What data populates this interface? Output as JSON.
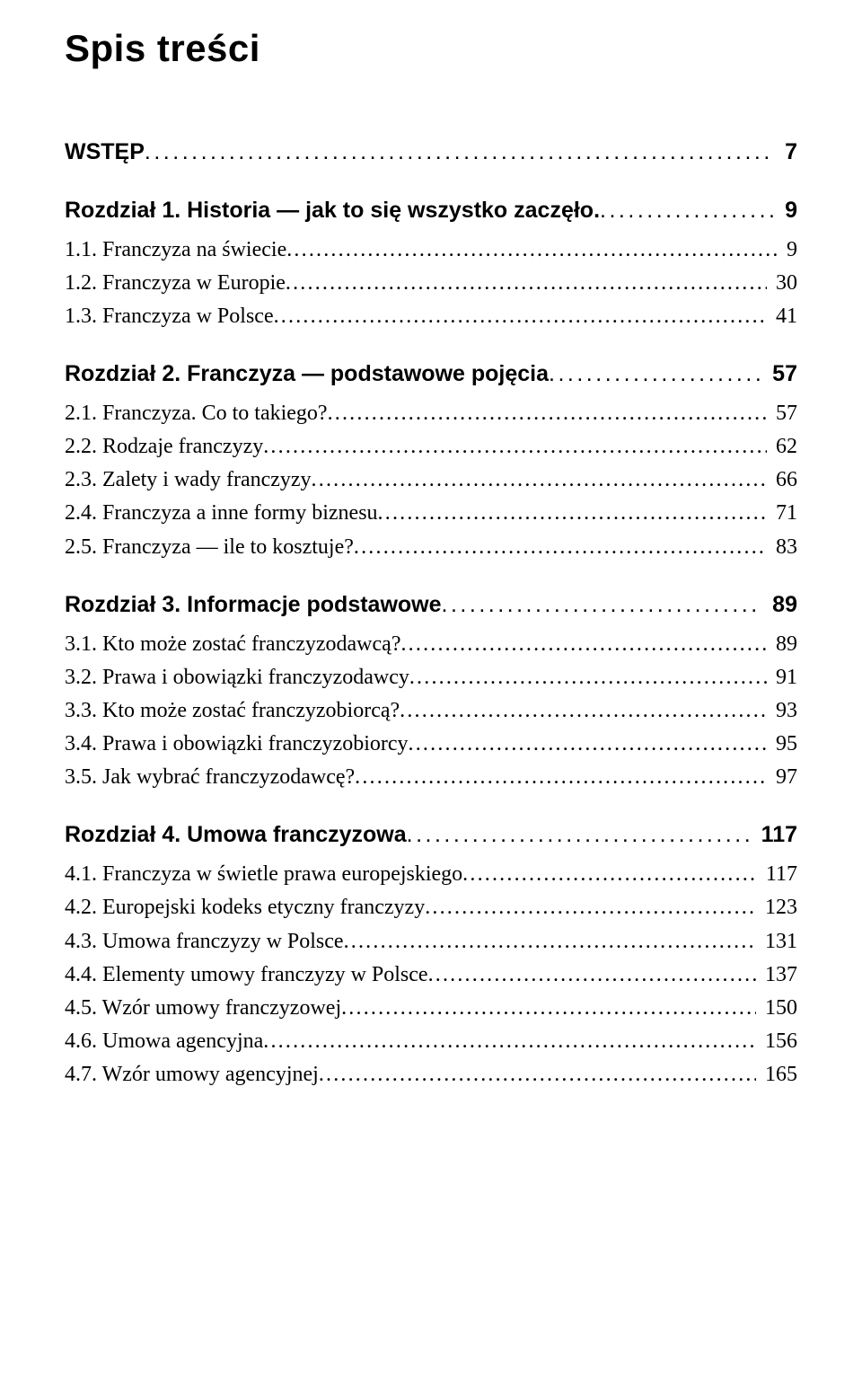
{
  "title": "Spis treści",
  "toc": [
    {
      "type": "chapter",
      "label": "WSTĘP",
      "page": "7",
      "first": true
    },
    {
      "type": "chapter",
      "label": "Rozdział 1. Historia — jak to się wszystko zaczęło.",
      "page": "9"
    },
    {
      "type": "entry",
      "label": "1.1. Franczyza na świecie",
      "page": "9"
    },
    {
      "type": "entry",
      "label": "1.2. Franczyza w Europie",
      "page": "30"
    },
    {
      "type": "entry",
      "label": "1.3. Franczyza w Polsce",
      "page": "41"
    },
    {
      "type": "chapter",
      "label": "Rozdział 2. Franczyza — podstawowe pojęcia",
      "page": "57"
    },
    {
      "type": "entry",
      "label": "2.1. Franczyza. Co to takiego?",
      "page": "57"
    },
    {
      "type": "entry",
      "label": "2.2. Rodzaje franczyzy",
      "page": "62"
    },
    {
      "type": "entry",
      "label": "2.3. Zalety i wady franczyzy",
      "page": "66"
    },
    {
      "type": "entry",
      "label": "2.4. Franczyza a inne formy biznesu",
      "page": "71"
    },
    {
      "type": "entry",
      "label": "2.5. Franczyza — ile to kosztuje?",
      "page": "83"
    },
    {
      "type": "chapter",
      "label": "Rozdział 3. Informacje podstawowe",
      "page": "89"
    },
    {
      "type": "entry",
      "label": "3.1. Kto może zostać franczyzodawcą?",
      "page": "89"
    },
    {
      "type": "entry",
      "label": "3.2. Prawa i obowiązki franczyzodawcy",
      "page": "91"
    },
    {
      "type": "entry",
      "label": "3.3. Kto może zostać franczyzobiorcą?",
      "page": "93"
    },
    {
      "type": "entry",
      "label": "3.4. Prawa i obowiązki franczyzobiorcy",
      "page": "95"
    },
    {
      "type": "entry",
      "label": "3.5. Jak wybrać franczyzodawcę?",
      "page": "97"
    },
    {
      "type": "chapter",
      "label": "Rozdział 4. Umowa franczyzowa",
      "page": "117"
    },
    {
      "type": "entry",
      "label": "4.1. Franczyza w świetle prawa europejskiego",
      "page": "117"
    },
    {
      "type": "entry",
      "label": "4.2. Europejski kodeks etyczny franczyzy",
      "page": "123"
    },
    {
      "type": "entry",
      "label": "4.3. Umowa franczyzy w Polsce",
      "page": "131"
    },
    {
      "type": "entry",
      "label": "4.4. Elementy umowy franczyzy w Polsce",
      "page": "137"
    },
    {
      "type": "entry",
      "label": "4.5. Wzór umowy franczyzowej",
      "page": "150"
    },
    {
      "type": "entry",
      "label": "4.6. Umowa agencyjna",
      "page": "156"
    },
    {
      "type": "entry",
      "label": "4.7. Wzór umowy agencyjnej",
      "page": "165"
    }
  ]
}
